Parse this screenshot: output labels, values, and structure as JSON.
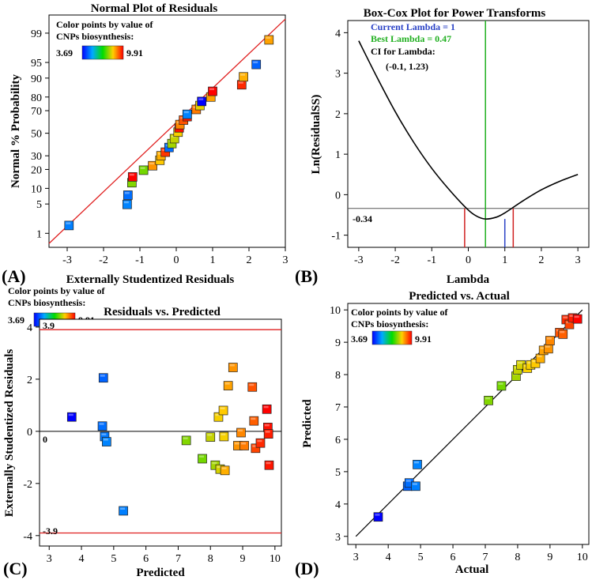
{
  "figure": {
    "panel_labels": [
      "(A)",
      "(B)",
      "(C)",
      "(D)"
    ],
    "legend": {
      "line1": "Color points by value of",
      "line2": "CNPs biosynthesis:",
      "min_label": "3.69",
      "max_label": "9.91",
      "gradient_colors": [
        "#0000ff",
        "#00aaff",
        "#00dd00",
        "#ffd000",
        "#ff0000"
      ]
    }
  },
  "chart_data": [
    {
      "panel": "A",
      "type": "scatter",
      "title": "Normal Plot of Residuals",
      "xlabel": "Externally Studentized Residuals",
      "ylabel": "Normal % Probability",
      "xlim": [
        -3.5,
        3.0
      ],
      "x_ticks": [
        "-3",
        "-2",
        "-1",
        "0",
        "1",
        "2",
        "3"
      ],
      "y_ticks": [
        "1",
        "5",
        "10",
        "20",
        "30",
        "50",
        "70",
        "80",
        "90",
        "95",
        "99"
      ],
      "reference_line": {
        "x": [
          -3.5,
          3.0
        ],
        "y": [
          0.52,
          99.6
        ]
      },
      "points": [
        {
          "x": -2.95,
          "y": 1.6,
          "v": 4.85
        },
        {
          "x": -1.35,
          "y": 4.9,
          "v": 4.9
        },
        {
          "x": -1.33,
          "y": 7.5,
          "v": 4.7
        },
        {
          "x": -1.22,
          "y": 12.5,
          "v": 7.6
        },
        {
          "x": -1.2,
          "y": 15.5,
          "v": 9.9
        },
        {
          "x": -0.9,
          "y": 19.5,
          "v": 7.5
        },
        {
          "x": -0.65,
          "y": 22.5,
          "v": 8.8
        },
        {
          "x": -0.45,
          "y": 26.5,
          "v": 8.4
        },
        {
          "x": -0.42,
          "y": 30.0,
          "v": 8.6
        },
        {
          "x": -0.3,
          "y": 33.0,
          "v": 9.5
        },
        {
          "x": -0.2,
          "y": 37.0,
          "v": 4.7
        },
        {
          "x": -0.12,
          "y": 40.5,
          "v": 7.8
        },
        {
          "x": -0.05,
          "y": 45.0,
          "v": 8.0
        },
        {
          "x": 0.05,
          "y": 51.0,
          "v": 8.3
        },
        {
          "x": 0.08,
          "y": 55.0,
          "v": 9.8
        },
        {
          "x": 0.1,
          "y": 58.0,
          "v": 8.9
        },
        {
          "x": 0.2,
          "y": 62.0,
          "v": 9.3
        },
        {
          "x": 0.3,
          "y": 65.0,
          "v": 9.7
        },
        {
          "x": 0.3,
          "y": 67.0,
          "v": 4.9
        },
        {
          "x": 0.55,
          "y": 71.0,
          "v": 9.0
        },
        {
          "x": 0.65,
          "y": 74.0,
          "v": 8.2
        },
        {
          "x": 0.7,
          "y": 77.0,
          "v": 3.69
        },
        {
          "x": 0.95,
          "y": 80.0,
          "v": 8.7
        },
        {
          "x": 1.0,
          "y": 83.5,
          "v": 9.9
        },
        {
          "x": 1.8,
          "y": 87.0,
          "v": 9.6
        },
        {
          "x": 1.85,
          "y": 90.5,
          "v": 8.6
        },
        {
          "x": 2.2,
          "y": 94.5,
          "v": 4.6
        },
        {
          "x": 2.55,
          "y": 98.5,
          "v": 8.7
        }
      ]
    },
    {
      "panel": "B",
      "type": "line",
      "title": "Box-Cox Plot for Power Transforms",
      "xlabel": "Lambda",
      "ylabel": "Ln(ResidualSS)",
      "xlim": [
        -3.3,
        3.3
      ],
      "ylim": [
        -1.3,
        4.3
      ],
      "x_ticks": [
        "-3",
        "-2",
        "-1",
        "0",
        "1",
        "2",
        "3"
      ],
      "y_ticks": [
        "-1",
        "0",
        "1",
        "2",
        "3",
        "4"
      ],
      "annotations": {
        "current": "Current Lambda = 1",
        "best": "Best Lambda = 0.47",
        "ci_title": "CI for Lambda:",
        "ci_range": "(-0.1, 1.23)",
        "hline_label": "-0.34"
      },
      "colors": {
        "current": "#2b43c6",
        "best": "#22b022",
        "ci": "#d02020"
      },
      "current_lambda": 1,
      "best_lambda": 0.47,
      "ci": [
        -0.1,
        1.23
      ],
      "hline": -0.34,
      "curve": {
        "x": [
          -3,
          -2.5,
          -2,
          -1.5,
          -1,
          -0.5,
          0,
          0.25,
          0.47,
          0.75,
          1,
          1.5,
          2,
          2.5,
          3
        ],
        "y": [
          3.8,
          2.9,
          2.05,
          1.3,
          0.65,
          0.1,
          -0.38,
          -0.54,
          -0.6,
          -0.56,
          -0.45,
          -0.15,
          0.12,
          0.33,
          0.5
        ]
      }
    },
    {
      "panel": "C",
      "type": "scatter",
      "title": "Residuals vs. Predicted",
      "xlabel": "Predicted",
      "ylabel": "Externally Studentized Residuals",
      "xlim": [
        2.7,
        10.2
      ],
      "ylim": [
        -4.4,
        4.3
      ],
      "x_ticks": [
        "3",
        "4",
        "5",
        "6",
        "7",
        "8",
        "9",
        "10"
      ],
      "y_ticks": [
        "-4",
        "-2",
        "0",
        "2",
        "4"
      ],
      "limits": [
        3.9,
        -3.9
      ],
      "limit_labels": [
        "3.9",
        "-3.9"
      ],
      "zero_label": "0",
      "points": [
        {
          "x": 3.7,
          "y": 0.55,
          "v": 3.69
        },
        {
          "x": 4.68,
          "y": 2.05,
          "v": 4.6
        },
        {
          "x": 4.65,
          "y": 0.2,
          "v": 4.7
        },
        {
          "x": 4.72,
          "y": -0.2,
          "v": 4.8
        },
        {
          "x": 4.78,
          "y": -0.4,
          "v": 4.9
        },
        {
          "x": 5.3,
          "y": -3.05,
          "v": 4.85
        },
        {
          "x": 7.25,
          "y": -0.35,
          "v": 7.6
        },
        {
          "x": 7.75,
          "y": -1.05,
          "v": 7.5
        },
        {
          "x": 8.0,
          "y": -0.22,
          "v": 8.0
        },
        {
          "x": 8.15,
          "y": -1.3,
          "v": 7.8
        },
        {
          "x": 8.25,
          "y": 0.55,
          "v": 8.3
        },
        {
          "x": 8.3,
          "y": -1.45,
          "v": 8.1
        },
        {
          "x": 8.4,
          "y": 0.8,
          "v": 8.4
        },
        {
          "x": 8.42,
          "y": -0.2,
          "v": 8.3
        },
        {
          "x": 8.45,
          "y": -1.5,
          "v": 8.6
        },
        {
          "x": 8.55,
          "y": 1.75,
          "v": 8.7
        },
        {
          "x": 8.7,
          "y": 2.45,
          "v": 8.8
        },
        {
          "x": 8.85,
          "y": -0.55,
          "v": 8.8
        },
        {
          "x": 8.95,
          "y": -0.05,
          "v": 8.9
        },
        {
          "x": 9.05,
          "y": -0.55,
          "v": 9.0
        },
        {
          "x": 9.3,
          "y": 1.7,
          "v": 9.3
        },
        {
          "x": 9.35,
          "y": 0.4,
          "v": 9.2
        },
        {
          "x": 9.4,
          "y": -0.65,
          "v": 9.4
        },
        {
          "x": 9.55,
          "y": -0.45,
          "v": 9.6
        },
        {
          "x": 9.75,
          "y": 0.85,
          "v": 9.9
        },
        {
          "x": 9.78,
          "y": 0.15,
          "v": 9.8
        },
        {
          "x": 9.8,
          "y": -0.1,
          "v": 9.7
        },
        {
          "x": 9.82,
          "y": -1.3,
          "v": 9.75
        }
      ]
    },
    {
      "panel": "D",
      "type": "scatter",
      "title": "Predicted vs. Actual",
      "xlabel": "Actual",
      "ylabel": "Predicted",
      "xlim": [
        2.75,
        10.2
      ],
      "ylim": [
        2.75,
        10.2
      ],
      "x_ticks": [
        "3",
        "4",
        "5",
        "6",
        "7",
        "8",
        "9",
        "10"
      ],
      "y_ticks": [
        "3",
        "4",
        "5",
        "6",
        "7",
        "8",
        "9",
        "10"
      ],
      "reference_line": {
        "x": [
          3.0,
          10.0
        ],
        "y": [
          3.0,
          10.0
        ]
      },
      "points": [
        {
          "x": 3.69,
          "y": 3.6,
          "v": 3.69
        },
        {
          "x": 4.6,
          "y": 4.55,
          "v": 4.6
        },
        {
          "x": 4.65,
          "y": 4.65,
          "v": 4.7
        },
        {
          "x": 4.85,
          "y": 4.55,
          "v": 4.85
        },
        {
          "x": 4.9,
          "y": 5.22,
          "v": 4.9
        },
        {
          "x": 7.1,
          "y": 7.2,
          "v": 7.6
        },
        {
          "x": 7.5,
          "y": 7.65,
          "v": 7.5
        },
        {
          "x": 7.95,
          "y": 7.95,
          "v": 7.8
        },
        {
          "x": 8.0,
          "y": 8.15,
          "v": 8.0
        },
        {
          "x": 8.1,
          "y": 8.3,
          "v": 8.1
        },
        {
          "x": 8.3,
          "y": 8.2,
          "v": 8.3
        },
        {
          "x": 8.4,
          "y": 8.3,
          "v": 8.3
        },
        {
          "x": 8.55,
          "y": 8.35,
          "v": 8.4
        },
        {
          "x": 8.7,
          "y": 8.5,
          "v": 8.6
        },
        {
          "x": 8.8,
          "y": 8.75,
          "v": 8.7
        },
        {
          "x": 8.95,
          "y": 8.8,
          "v": 8.8
        },
        {
          "x": 9.0,
          "y": 9.05,
          "v": 8.9
        },
        {
          "x": 9.3,
          "y": 9.3,
          "v": 9.3
        },
        {
          "x": 9.4,
          "y": 9.25,
          "v": 9.2
        },
        {
          "x": 9.5,
          "y": 9.7,
          "v": 9.6
        },
        {
          "x": 9.6,
          "y": 9.55,
          "v": 9.4
        },
        {
          "x": 9.7,
          "y": 9.75,
          "v": 9.7
        },
        {
          "x": 9.85,
          "y": 9.72,
          "v": 9.9
        }
      ]
    }
  ]
}
